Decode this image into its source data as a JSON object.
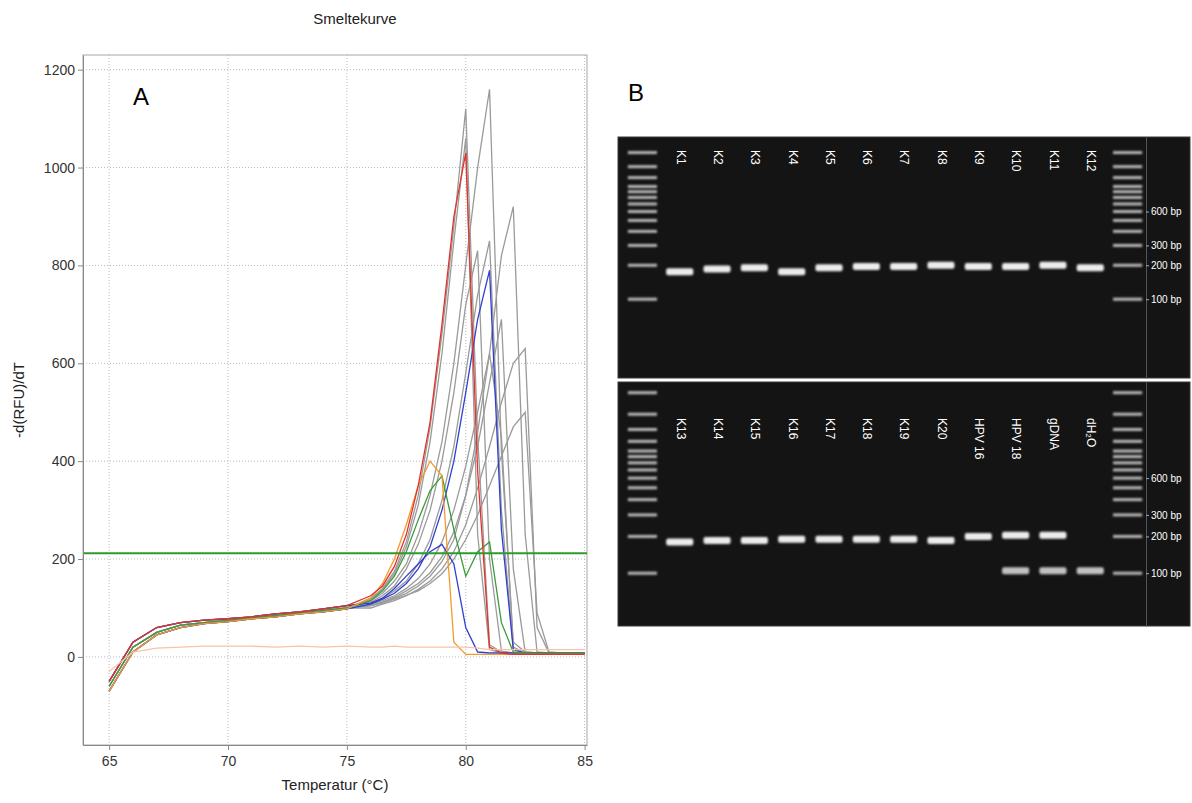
{
  "chart_data": [
    {
      "type": "line",
      "title": "Smeltekurve",
      "panel_label": "A",
      "x_label": "Temperatur (°C)",
      "y_label": "-d(RFU)/dT",
      "x": [
        65,
        66,
        67,
        68,
        69,
        70,
        71,
        72,
        73,
        74,
        75,
        76,
        76.5,
        77,
        77.5,
        78,
        78.5,
        79,
        79.5,
        80,
        80.5,
        81,
        81.5,
        82,
        82.5,
        83,
        83.5,
        84,
        85
      ],
      "xlim": [
        63.9,
        85.1
      ],
      "ylim": [
        -180,
        1230
      ],
      "xticks": [
        65,
        70,
        75,
        80,
        85
      ],
      "yticks": [
        0,
        200,
        400,
        600,
        800,
        1000,
        1200
      ],
      "grid": true,
      "threshold": {
        "value": 212,
        "color": "#2e9a2e"
      },
      "series": [
        {
          "color": "#9a9a9a",
          "values": [
            -60,
            20,
            50,
            65,
            70,
            75,
            80,
            85,
            90,
            95,
            100,
            115,
            130,
            155,
            190,
            250,
            330,
            440,
            600,
            800,
            1000,
            1160,
            420,
            30,
            10,
            8,
            8,
            8,
            8
          ]
        },
        {
          "color": "#9a9a9a",
          "values": [
            -70,
            10,
            45,
            60,
            68,
            72,
            78,
            82,
            88,
            92,
            98,
            120,
            140,
            175,
            235,
            330,
            470,
            660,
            880,
            1120,
            450,
            25,
            10,
            8,
            8,
            8,
            8,
            8,
            8
          ]
        },
        {
          "color": "#9a9a9a",
          "values": [
            -60,
            20,
            50,
            65,
            70,
            75,
            80,
            85,
            90,
            95,
            100,
            105,
            112,
            120,
            130,
            145,
            165,
            195,
            240,
            330,
            460,
            620,
            820,
            920,
            250,
            10,
            8,
            8,
            8
          ]
        },
        {
          "color": "#9a9a9a",
          "values": [
            -50,
            30,
            60,
            70,
            75,
            78,
            82,
            88,
            92,
            98,
            105,
            110,
            120,
            135,
            155,
            190,
            240,
            320,
            430,
            580,
            740,
            850,
            300,
            15,
            8,
            8,
            8,
            8,
            8
          ]
        },
        {
          "color": "#9a9a9a",
          "values": [
            -60,
            20,
            50,
            65,
            70,
            75,
            80,
            85,
            90,
            95,
            100,
            100,
            108,
            115,
            125,
            138,
            155,
            180,
            215,
            270,
            345,
            430,
            520,
            600,
            630,
            60,
            8,
            8,
            8
          ]
        },
        {
          "color": "#9a9a9a",
          "values": [
            -50,
            30,
            60,
            70,
            75,
            78,
            82,
            88,
            92,
            98,
            105,
            105,
            110,
            118,
            126,
            135,
            150,
            170,
            200,
            240,
            290,
            350,
            410,
            470,
            500,
            90,
            10,
            8,
            8
          ]
        },
        {
          "color": "#9a9a9a",
          "values": [
            -70,
            10,
            45,
            60,
            68,
            72,
            78,
            82,
            88,
            92,
            98,
            118,
            138,
            170,
            225,
            310,
            440,
            620,
            850,
            1060,
            250,
            15,
            8,
            8,
            8,
            8,
            8,
            8,
            8
          ]
        },
        {
          "color": "#9a9a9a",
          "values": [
            -50,
            30,
            60,
            70,
            75,
            78,
            82,
            88,
            92,
            98,
            105,
            112,
            125,
            145,
            180,
            230,
            300,
            400,
            540,
            720,
            830,
            200,
            12,
            8,
            8,
            8,
            8,
            8,
            8
          ]
        },
        {
          "color": "#9a9a9a",
          "values": [
            -60,
            20,
            50,
            65,
            70,
            75,
            80,
            85,
            90,
            95,
            100,
            105,
            112,
            122,
            135,
            150,
            172,
            205,
            255,
            330,
            430,
            560,
            690,
            180,
            10,
            8,
            8,
            8,
            8
          ]
        },
        {
          "color": "#9a9a9a",
          "values": [
            -70,
            10,
            45,
            60,
            68,
            72,
            78,
            82,
            88,
            92,
            98,
            108,
            115,
            125,
            140,
            160,
            190,
            235,
            300,
            390,
            500,
            620,
            450,
            20,
            8,
            8,
            8,
            8,
            8
          ]
        },
        {
          "color": "#2f3fd0",
          "values": [
            -70,
            10,
            45,
            60,
            68,
            72,
            78,
            82,
            88,
            92,
            98,
            108,
            118,
            130,
            150,
            180,
            225,
            300,
            400,
            540,
            690,
            790,
            260,
            15,
            8,
            8,
            8,
            8,
            8
          ]
        },
        {
          "color": "#2f3fd0",
          "values": [
            -50,
            30,
            60,
            70,
            75,
            78,
            82,
            88,
            92,
            98,
            105,
            110,
            120,
            140,
            165,
            190,
            215,
            230,
            190,
            60,
            10,
            8,
            8,
            8,
            8,
            8,
            8,
            8,
            8
          ]
        },
        {
          "color": "#3a9a3a",
          "values": [
            -60,
            20,
            50,
            65,
            70,
            75,
            80,
            85,
            90,
            95,
            100,
            115,
            135,
            165,
            215,
            280,
            340,
            370,
            260,
            165,
            215,
            235,
            70,
            10,
            8,
            8,
            8,
            8,
            8
          ]
        },
        {
          "color": "#f39a2c",
          "values": [
            -70,
            10,
            45,
            60,
            68,
            72,
            78,
            82,
            88,
            92,
            98,
            120,
            150,
            200,
            270,
            350,
            400,
            370,
            30,
            5,
            5,
            5,
            5,
            5,
            5,
            5,
            5,
            5,
            5
          ]
        },
        {
          "color": "#e53228",
          "values": [
            -50,
            30,
            60,
            70,
            75,
            78,
            82,
            88,
            92,
            98,
            105,
            125,
            145,
            185,
            250,
            350,
            480,
            680,
            900,
            1030,
            380,
            20,
            8,
            5,
            5,
            5,
            5,
            5,
            5
          ]
        },
        {
          "color": "#f8c4a4",
          "values": [
            -30,
            10,
            18,
            20,
            22,
            22,
            22,
            20,
            22,
            20,
            22,
            20,
            20,
            22,
            20,
            20,
            20,
            20,
            20,
            20,
            18,
            15,
            15,
            15,
            15,
            15,
            15,
            15,
            15
          ]
        }
      ]
    },
    {
      "type": "gel",
      "panel_label": "B",
      "log": "y",
      "categories": [
        null,
        "K1",
        "K2",
        "K3",
        "K4",
        "K5",
        "K6",
        "K7",
        "K8",
        "K9",
        "K10",
        "K11",
        "K12",
        null
      ],
      "ylim": [
        20,
        2750
      ],
      "yticks": [
        {
          "value": 600,
          "label": "600 bp"
        },
        {
          "value": 300,
          "label": "300 bp"
        },
        {
          "value": 200,
          "label": "200 bp"
        },
        {
          "value": 100,
          "label": "100 bp"
        }
      ],
      "ladder": [
        100,
        200,
        300,
        400,
        500,
        600,
        700,
        800,
        900,
        1000,
        1200,
        1500,
        2000,
        3000
      ],
      "series": [
        {
          "color": "#ffffff",
          "values": [
            null,
            175,
            185,
            190,
            175,
            190,
            195,
            195,
            200,
            195,
            195,
            200,
            190,
            null
          ]
        }
      ]
    },
    {
      "type": "gel",
      "log": "y",
      "categories": [
        null,
        "K13",
        "K14",
        "K15",
        "K16",
        "K17",
        "K18",
        "K19",
        "K20",
        "HPV 16",
        "HPV 18",
        "gDNA",
        "dH₂O",
        null
      ],
      "ylim": [
        37,
        3670
      ],
      "yticks": [
        {
          "value": 600,
          "label": "600 bp"
        },
        {
          "value": 300,
          "label": "300 bp"
        },
        {
          "value": 200,
          "label": "200 bp"
        },
        {
          "value": 100,
          "label": "100 bp"
        }
      ],
      "ladder": [
        100,
        200,
        300,
        400,
        500,
        600,
        700,
        800,
        900,
        1000,
        1200,
        1500,
        2000,
        3000
      ],
      "series": [
        {
          "color": "#ffffff",
          "values": [
            null,
            180,
            185,
            185,
            190,
            190,
            190,
            190,
            185,
            200,
            205,
            205,
            null,
            null
          ]
        },
        {
          "color": "#d0d0d0",
          "values": [
            null,
            null,
            null,
            null,
            null,
            null,
            null,
            null,
            null,
            null,
            105,
            105,
            105,
            null
          ]
        }
      ]
    }
  ]
}
